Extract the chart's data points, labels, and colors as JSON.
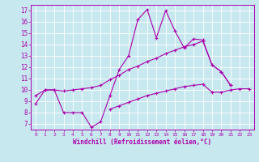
{
  "xlabel": "Windchill (Refroidissement éolien,°C)",
  "x_labels": [
    "0",
    "1",
    "2",
    "3",
    "4",
    "5",
    "6",
    "7",
    "8",
    "9",
    "10",
    "11",
    "12",
    "13",
    "14",
    "15",
    "16",
    "17",
    "18",
    "19",
    "20",
    "21",
    "22",
    "23"
  ],
  "xlim": [
    -0.5,
    23.5
  ],
  "ylim": [
    6.5,
    17.5
  ],
  "y_ticks": [
    7,
    8,
    9,
    10,
    11,
    12,
    13,
    14,
    15,
    16,
    17
  ],
  "bg_color": "#c8e8f0",
  "line_color": "#aa00aa",
  "grid_color": "#ffffff",
  "curve1": [
    8.8,
    10.0,
    10.0,
    8.0,
    8.0,
    8.0,
    6.7,
    7.2,
    9.5,
    11.8,
    13.0,
    16.2,
    17.1,
    14.6,
    17.0,
    15.2,
    13.7,
    14.5,
    14.4,
    12.2,
    11.6,
    10.4,
    null,
    null
  ],
  "curve2": [
    9.5,
    10.0,
    10.0,
    9.9,
    10.0,
    10.1,
    10.2,
    10.4,
    10.9,
    11.3,
    11.8,
    12.1,
    12.5,
    12.8,
    13.2,
    13.5,
    13.8,
    14.0,
    14.3,
    12.2,
    11.6,
    10.4,
    null,
    null
  ],
  "curve3": [
    null,
    null,
    null,
    null,
    null,
    null,
    null,
    null,
    8.3,
    8.6,
    8.9,
    9.2,
    9.5,
    9.7,
    9.9,
    10.1,
    10.3,
    10.4,
    10.5,
    9.8,
    9.8,
    10.0,
    10.1,
    10.1
  ]
}
